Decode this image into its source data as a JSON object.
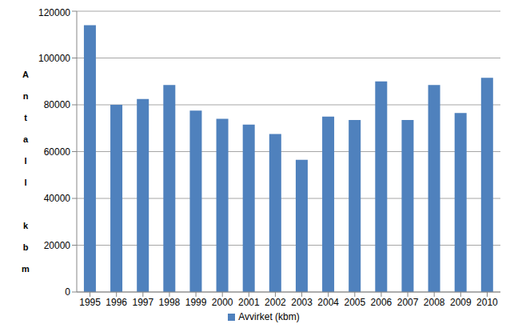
{
  "chart_data": {
    "type": "bar",
    "y_label": "Antall kbm",
    "categories": [
      "1995",
      "1996",
      "1997",
      "1998",
      "1999",
      "2000",
      "2001",
      "2002",
      "2003",
      "2004",
      "2005",
      "2006",
      "2007",
      "2008",
      "2009",
      "2010"
    ],
    "series": [
      {
        "name": "Avvirket (kbm)",
        "color": "#4f81bd",
        "values": [
          114000,
          80000,
          82500,
          88500,
          77500,
          74000,
          71500,
          67500,
          56500,
          75000,
          73500,
          90000,
          73500,
          88500,
          76500,
          91500
        ]
      }
    ],
    "ylim": [
      0,
      120000
    ],
    "yticks": [
      0,
      20000,
      40000,
      60000,
      80000,
      100000,
      120000
    ],
    "grid": true,
    "legend": "bottom"
  }
}
